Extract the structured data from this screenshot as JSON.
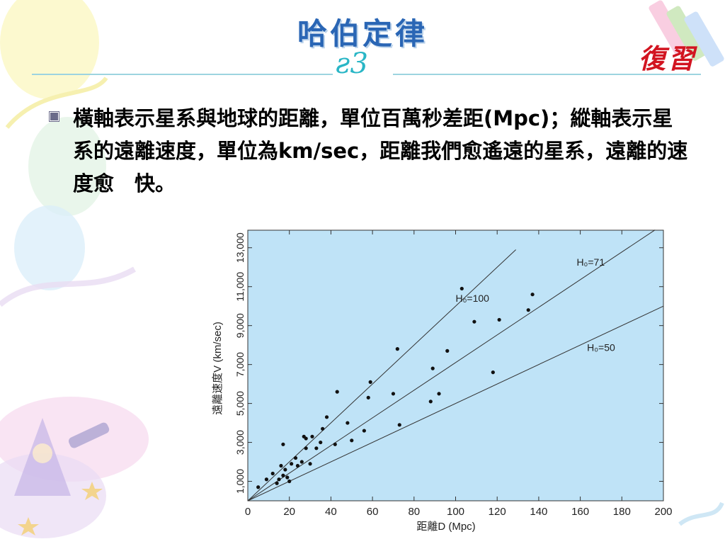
{
  "slide": {
    "title": "哈伯定律",
    "corner_label": "復習",
    "ornament": "ƨ3",
    "bullet_text": "橫軸表示星系與地球的距離，單位百萬秒差距(Mpc)；縱軸表示星系的遠離速度，單位為km/sec，距離我們愈遙遠的星系，遠離的速度愈　快。",
    "colors": {
      "title": "#2a66b5",
      "corner_label": "#d21420",
      "plot_bg": "#bfe3f7"
    }
  },
  "chart_data": {
    "type": "scatter",
    "title": "",
    "xlabel": "距離D (Mpc)",
    "ylabel": "遠離速度V (km/sec)",
    "xlim": [
      0,
      200
    ],
    "ylim": [
      0,
      13900
    ],
    "x_ticks": [
      0,
      20,
      40,
      60,
      80,
      100,
      120,
      140,
      160,
      180,
      200
    ],
    "y_ticks": [
      1000,
      3000,
      5000,
      7000,
      9000,
      11000,
      13000
    ],
    "y_tick_labels": [
      "1,000",
      "3,000",
      "5,000",
      "7,000",
      "9,000",
      "11,000",
      "13,000"
    ],
    "grid": false,
    "lines": [
      {
        "name": "H₀=100",
        "slope": 100,
        "x_end": 129
      },
      {
        "name": "H₀=71",
        "slope": 71,
        "x_end": 196
      },
      {
        "name": "H₀=50",
        "slope": 50,
        "x_end": 200
      }
    ],
    "points": [
      {
        "x": 5,
        "y": 700
      },
      {
        "x": 9,
        "y": 1100
      },
      {
        "x": 12,
        "y": 1400
      },
      {
        "x": 14,
        "y": 900
      },
      {
        "x": 15,
        "y": 1100
      },
      {
        "x": 16,
        "y": 1800
      },
      {
        "x": 17,
        "y": 2900
      },
      {
        "x": 17,
        "y": 1300
      },
      {
        "x": 18,
        "y": 1600
      },
      {
        "x": 19,
        "y": 1200
      },
      {
        "x": 20,
        "y": 1000
      },
      {
        "x": 21,
        "y": 1900
      },
      {
        "x": 23,
        "y": 2200
      },
      {
        "x": 24,
        "y": 1800
      },
      {
        "x": 26,
        "y": 2000
      },
      {
        "x": 27,
        "y": 3300
      },
      {
        "x": 28,
        "y": 3200
      },
      {
        "x": 28,
        "y": 2700
      },
      {
        "x": 30,
        "y": 1900
      },
      {
        "x": 31,
        "y": 3300
      },
      {
        "x": 33,
        "y": 2700
      },
      {
        "x": 35,
        "y": 3000
      },
      {
        "x": 36,
        "y": 3700
      },
      {
        "x": 38,
        "y": 4300
      },
      {
        "x": 42,
        "y": 2900
      },
      {
        "x": 43,
        "y": 5600
      },
      {
        "x": 48,
        "y": 4000
      },
      {
        "x": 50,
        "y": 3100
      },
      {
        "x": 56,
        "y": 3600
      },
      {
        "x": 58,
        "y": 5300
      },
      {
        "x": 59,
        "y": 6100
      },
      {
        "x": 70,
        "y": 5500
      },
      {
        "x": 72,
        "y": 7800
      },
      {
        "x": 73,
        "y": 3900
      },
      {
        "x": 88,
        "y": 5100
      },
      {
        "x": 89,
        "y": 6800
      },
      {
        "x": 92,
        "y": 5500
      },
      {
        "x": 96,
        "y": 7700
      },
      {
        "x": 103,
        "y": 10900
      },
      {
        "x": 109,
        "y": 9200
      },
      {
        "x": 121,
        "y": 9300
      },
      {
        "x": 118,
        "y": 6600
      },
      {
        "x": 135,
        "y": 9800
      },
      {
        "x": 137,
        "y": 10600
      }
    ]
  }
}
